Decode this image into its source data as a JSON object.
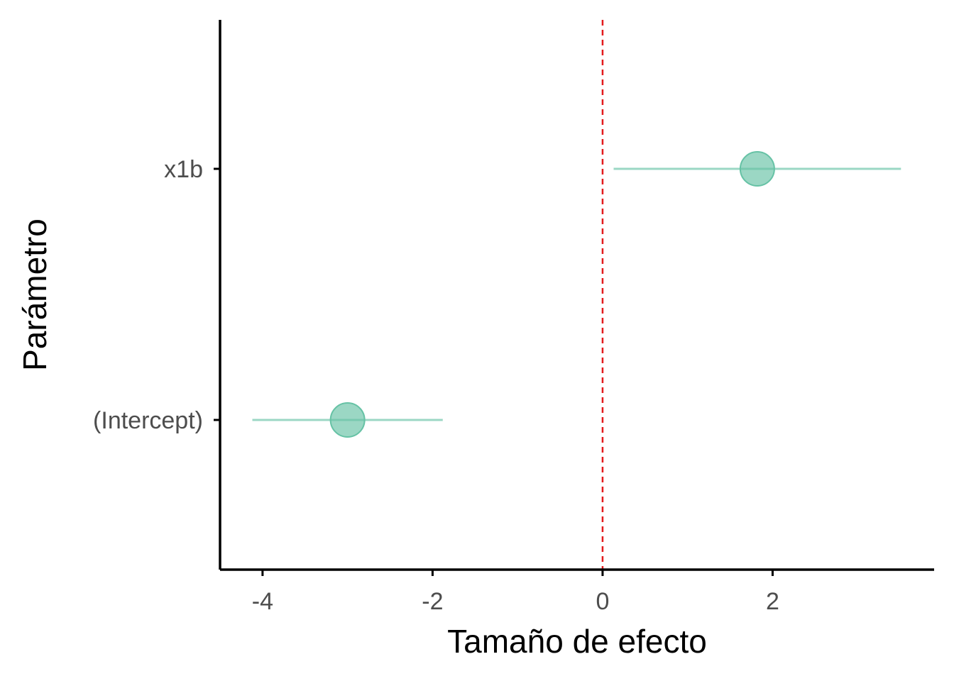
{
  "chart_data": {
    "type": "scatter",
    "subtype": "coefficient-plot",
    "title": "",
    "xlabel": "Tamaño de efecto",
    "ylabel": "Parámetro",
    "xlim": [
      -4.5,
      3.9
    ],
    "x_ticks": [
      -4,
      -2,
      0,
      2
    ],
    "x_tick_labels": [
      "-4",
      "-2",
      "0",
      "2"
    ],
    "categories": [
      "(Intercept)",
      "x1b"
    ],
    "points": [
      {
        "category": "(Intercept)",
        "estimate": -3.0,
        "low": -4.12,
        "high": -1.88
      },
      {
        "category": "x1b",
        "estimate": 1.82,
        "low": 0.13,
        "high": 3.51
      }
    ],
    "reference_line": {
      "x": 0,
      "style": "dashed",
      "color": "#e31a1c"
    },
    "point_color": "#66c2a5",
    "grid": false,
    "legend": "none"
  }
}
